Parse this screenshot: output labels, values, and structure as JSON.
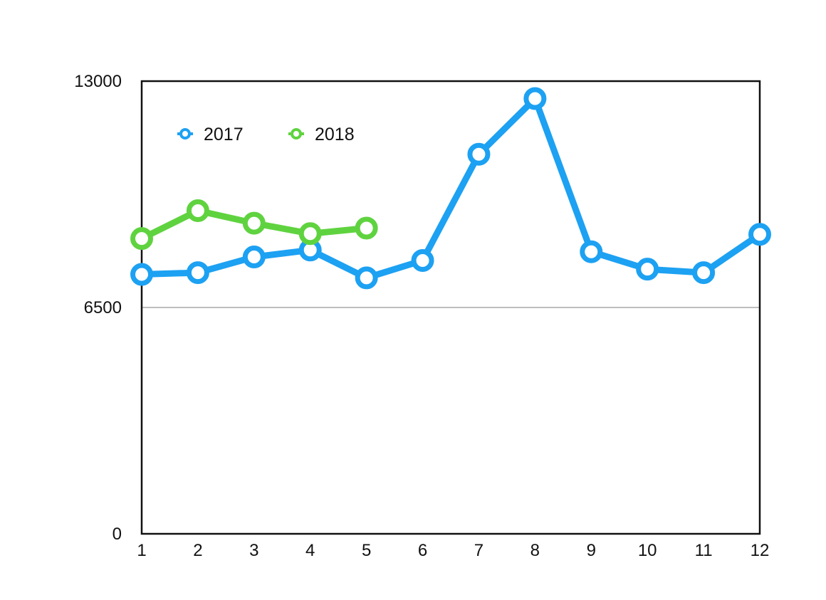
{
  "chart_data": {
    "type": "line",
    "title": "",
    "xlabel": "",
    "ylabel": "",
    "x": [
      1,
      2,
      3,
      4,
      5,
      6,
      7,
      8,
      9,
      10,
      11,
      12
    ],
    "x_tick_labels": [
      "1",
      "2",
      "3",
      "4",
      "5",
      "6",
      "7",
      "8",
      "9",
      "10",
      "11",
      "12"
    ],
    "y_tick_labels": [
      "0",
      "6500",
      "13000"
    ],
    "y_ticks": [
      0,
      6500,
      13000
    ],
    "ylim": [
      0,
      13000
    ],
    "xlim": [
      1,
      12
    ],
    "grid": "horizontal line at 6500",
    "legend": "top-left",
    "series": [
      {
        "name": "2017",
        "color": "#1da1f2",
        "values": [
          7450,
          7500,
          7950,
          8150,
          7350,
          7850,
          10900,
          12500,
          8100,
          7600,
          7500,
          8600
        ]
      },
      {
        "name": "2018",
        "color": "#5fd33f",
        "values": [
          8480,
          9280,
          8920,
          8620,
          8780,
          null,
          null,
          null,
          null,
          null,
          null,
          null
        ]
      }
    ]
  }
}
